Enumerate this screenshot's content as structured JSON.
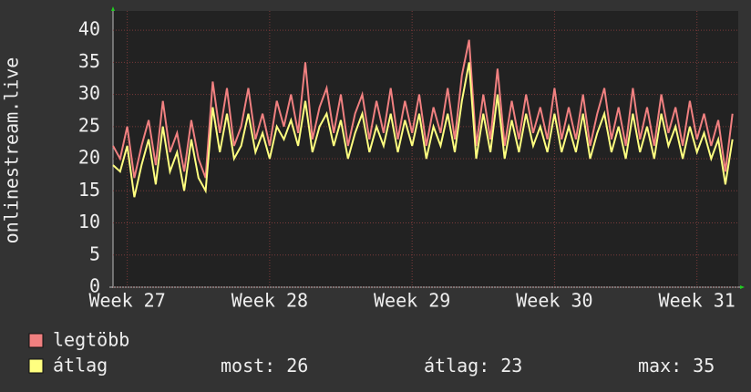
{
  "chart_data": {
    "type": "line",
    "y_label": "onlinestream.live",
    "x": [
      26.9,
      26.95,
      27.0,
      27.05,
      27.1,
      27.15,
      27.2,
      27.25,
      27.3,
      27.35,
      27.4,
      27.45,
      27.5,
      27.55,
      27.6,
      27.65,
      27.7,
      27.75,
      27.8,
      27.85,
      27.9,
      27.95,
      28.0,
      28.05,
      28.1,
      28.15,
      28.2,
      28.25,
      28.3,
      28.35,
      28.4,
      28.45,
      28.5,
      28.55,
      28.6,
      28.65,
      28.7,
      28.75,
      28.8,
      28.85,
      28.9,
      28.95,
      29.0,
      29.05,
      29.1,
      29.15,
      29.2,
      29.25,
      29.3,
      29.35,
      29.4,
      29.45,
      29.5,
      29.55,
      29.6,
      29.65,
      29.7,
      29.75,
      29.8,
      29.85,
      29.9,
      29.95,
      30.0,
      30.05,
      30.1,
      30.15,
      30.2,
      30.25,
      30.3,
      30.35,
      30.4,
      30.45,
      30.5,
      30.55,
      30.6,
      30.65,
      30.7,
      30.75,
      30.8,
      30.85,
      30.9,
      30.95,
      31.0,
      31.05,
      31.1,
      31.15,
      31.2,
      31.25
    ],
    "series": [
      {
        "name": "legtöbb",
        "color": "#f08080",
        "values": [
          22,
          20,
          25,
          17,
          22,
          26,
          19,
          29,
          21,
          24,
          18,
          26,
          20,
          17,
          32,
          24,
          31,
          22,
          25,
          31,
          23,
          27,
          22,
          29,
          25,
          30,
          24,
          35,
          23,
          28,
          31,
          24,
          30,
          22,
          27,
          30,
          23,
          29,
          24,
          31,
          23,
          29,
          24,
          30,
          22,
          28,
          24,
          31,
          23,
          33,
          38.5,
          22,
          30,
          23,
          34,
          22,
          29,
          23,
          30,
          24,
          28,
          23,
          31,
          23,
          28,
          23,
          30,
          22,
          27,
          31,
          23,
          28,
          22,
          31,
          23,
          28,
          22,
          30,
          24,
          28,
          22,
          29,
          23,
          27,
          22,
          26,
          18,
          27
        ]
      },
      {
        "name": "átlag",
        "color": "#ffff80",
        "values": [
          19,
          18,
          22,
          14,
          19,
          23,
          16,
          25,
          18,
          21,
          15,
          23,
          17,
          15,
          28,
          21,
          27,
          20,
          22,
          27,
          21,
          24,
          20,
          25,
          23,
          26,
          22,
          29,
          21,
          25,
          27,
          22,
          26,
          20,
          24,
          27,
          21,
          25,
          22,
          27,
          21,
          26,
          22,
          27,
          20,
          25,
          22,
          27,
          21,
          29,
          35,
          20,
          27,
          21,
          30,
          20,
          26,
          21,
          27,
          22,
          25,
          21,
          27,
          21,
          25,
          21,
          27,
          20,
          24,
          27,
          21,
          25,
          20,
          27,
          21,
          25,
          20,
          27,
          22,
          25,
          20,
          25,
          21,
          24,
          20,
          23,
          16,
          23
        ]
      }
    ],
    "xlim": [
      26.9,
      31.29
    ],
    "xticks": [
      {
        "value": 27,
        "label": "Week 27"
      },
      {
        "value": 28,
        "label": "Week 28"
      },
      {
        "value": 29,
        "label": "Week 29"
      },
      {
        "value": 30,
        "label": "Week 30"
      },
      {
        "value": 31,
        "label": "Week 31"
      }
    ],
    "ylim": [
      0,
      43
    ],
    "yticks": [
      0,
      5,
      10,
      15,
      20,
      25,
      30,
      35,
      40
    ],
    "grid": true,
    "stats": [
      {
        "label": "most:",
        "value": 26
      },
      {
        "label": "átlag:",
        "value": 23
      },
      {
        "label": "max:",
        "value": 35
      }
    ]
  }
}
